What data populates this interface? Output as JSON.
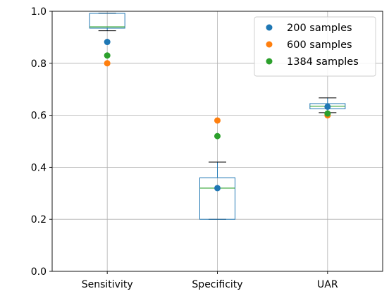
{
  "chart_data": {
    "type": "box",
    "title": "",
    "xlabel": "",
    "ylabel": "",
    "categories": [
      "Sensitivity",
      "Specificity",
      "UAR"
    ],
    "ylim": [
      0,
      1.0
    ],
    "yticks": [
      "0.0",
      "0.2",
      "0.4",
      "0.6",
      "0.8",
      "1.0"
    ],
    "grid": true,
    "legend_position": "top-right",
    "box_color": "#1f77b4",
    "median_color": "#2ca02c",
    "boxes": [
      {
        "category": "Sensitivity",
        "whisker_low": 0.925,
        "q1": 0.935,
        "median": 0.94,
        "q3": 0.992,
        "whisker_high": 0.993
      },
      {
        "category": "Specificity",
        "whisker_low": 0.2,
        "q1": 0.2,
        "median": 0.32,
        "q3": 0.36,
        "whisker_high": 0.42
      },
      {
        "category": "UAR",
        "whisker_low": 0.61,
        "q1": 0.625,
        "median": 0.635,
        "q3": 0.645,
        "whisker_high": 0.667
      }
    ],
    "series": [
      {
        "name": "200 samples",
        "color": "#1f77b4",
        "values": [
          0.882,
          0.32,
          0.633
        ]
      },
      {
        "name": "600 samples",
        "color": "#ff7f0e",
        "values": [
          0.8,
          0.58,
          0.6
        ]
      },
      {
        "name": "1384 samples",
        "color": "#2ca02c",
        "values": [
          0.83,
          0.52,
          0.607
        ]
      }
    ]
  }
}
